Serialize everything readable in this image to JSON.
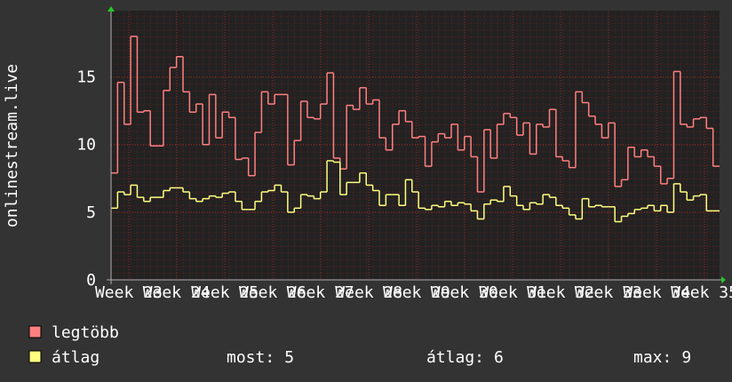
{
  "chart_data": {
    "type": "step",
    "ylabel": "onlinestream.live",
    "xlim": [
      0,
      93
    ],
    "xticks": [
      {
        "value": 2.7,
        "label": "Week 23"
      },
      {
        "value": 10.0,
        "label": "Week 24"
      },
      {
        "value": 17.4,
        "label": "Week 25"
      },
      {
        "value": 24.7,
        "label": "Week 26"
      },
      {
        "value": 32.0,
        "label": "Week 27"
      },
      {
        "value": 39.4,
        "label": "Week 28"
      },
      {
        "value": 46.7,
        "label": "Week 29"
      },
      {
        "value": 54.0,
        "label": "Week 30"
      },
      {
        "value": 61.4,
        "label": "Week 31"
      },
      {
        "value": 68.7,
        "label": "Week 32"
      },
      {
        "value": 76.0,
        "label": "Week 33"
      },
      {
        "value": 83.4,
        "label": "Week 34"
      },
      {
        "value": 90.7,
        "label": "Week 35"
      }
    ],
    "ylim": [
      0,
      19.9
    ],
    "yticks": [
      0,
      5,
      10,
      15
    ],
    "grid": true,
    "series": [
      {
        "name": "legtöbb",
        "color": "#ff7f7f",
        "values": [
          7.9,
          14.6,
          11.5,
          18,
          12.4,
          12.5,
          9.9,
          9.9,
          14,
          15.7,
          16.5,
          13.9,
          12.4,
          13,
          10,
          13.7,
          10.5,
          12.4,
          12,
          8.9,
          9,
          7.7,
          10.9,
          13.9,
          13,
          13.7,
          13.7,
          8.5,
          10.3,
          13.2,
          12,
          11.9,
          13,
          15.3,
          9,
          8.2,
          12.9,
          12.6,
          14.2,
          13,
          13.3,
          10.5,
          9.6,
          11.5,
          12.5,
          11.7,
          10.5,
          10.6,
          8.4,
          10.2,
          10.8,
          10.5,
          11.5,
          9.6,
          10.6,
          9.1,
          6.5,
          11.1,
          9,
          11.5,
          12.3,
          12,
          10.7,
          11.6,
          9.3,
          11.5,
          11.3,
          12.6,
          9.1,
          8.8,
          8.3,
          13.9,
          13.1,
          12.1,
          11.5,
          10.5,
          11.6,
          6.9,
          7.4,
          9.8,
          9.1,
          9.6,
          9.1,
          8.4,
          7.1,
          7.5,
          15.4,
          11.5,
          11.3,
          11.9,
          12,
          11.2,
          8.4
        ]
      },
      {
        "name": "átlag",
        "color": "#ffff7f",
        "values": [
          5.3,
          6.5,
          6.3,
          7,
          6.1,
          5.8,
          6.1,
          6.1,
          6.6,
          6.8,
          6.8,
          6.5,
          6,
          5.8,
          6,
          6.2,
          6.1,
          6.4,
          6.5,
          5.8,
          5.2,
          5.2,
          5.8,
          6.5,
          6.6,
          7,
          6.5,
          5,
          5.3,
          6.3,
          6.2,
          6,
          6.5,
          8.8,
          8.7,
          6.3,
          7.2,
          7.2,
          7.9,
          7,
          6.6,
          5.5,
          6.3,
          6.3,
          5.5,
          7.4,
          6.5,
          5.3,
          5.2,
          5.5,
          5.4,
          5.8,
          5.5,
          5.7,
          5.6,
          5.1,
          4.5,
          5.6,
          5.9,
          5.8,
          6.9,
          6.2,
          5.5,
          5.2,
          5.7,
          5.6,
          6.3,
          6.1,
          5.5,
          5.3,
          4.8,
          4.5,
          6,
          5.4,
          5.5,
          5.4,
          5.4,
          4.3,
          4.7,
          4.9,
          5.2,
          5.3,
          5.5,
          5.1,
          5.5,
          5,
          7.1,
          6.5,
          5.9,
          6.2,
          6.3,
          5.1,
          5.1
        ]
      }
    ],
    "stats": [
      {
        "label": "most:",
        "value": 5
      },
      {
        "label": "átlag:",
        "value": 6
      },
      {
        "label": "max:",
        "value": 9
      }
    ]
  }
}
